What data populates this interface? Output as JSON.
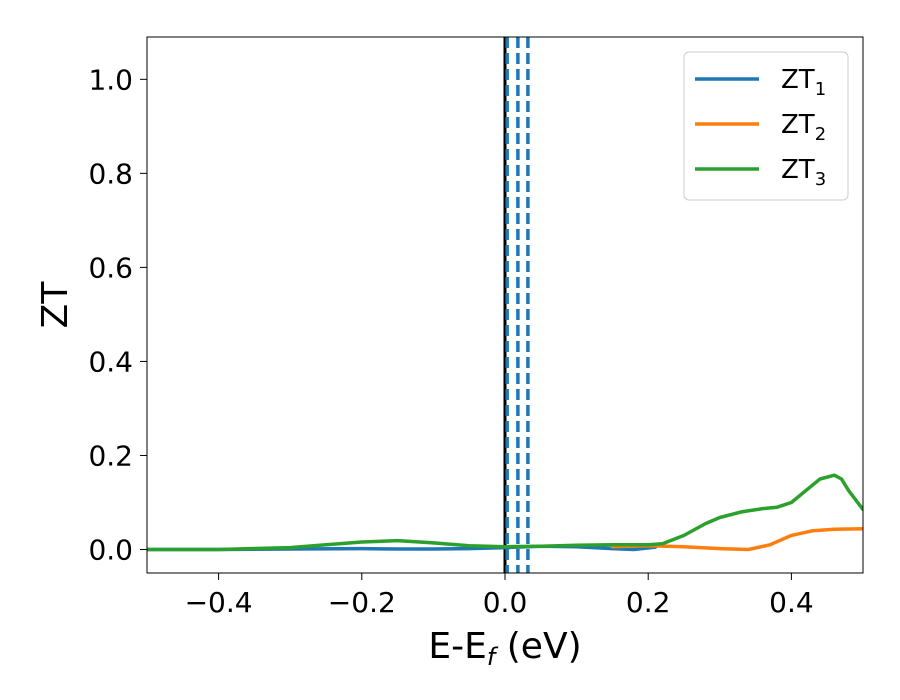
{
  "chart_data": {
    "type": "line",
    "xlabel": {
      "main": "E-E",
      "sub": "f",
      "unit": " (eV)"
    },
    "ylabel": "ZT",
    "xlim": [
      -0.5,
      0.5
    ],
    "ylim": [
      -0.05,
      1.09
    ],
    "x_ticks": [
      {
        "value": -0.4,
        "label": "−0.4"
      },
      {
        "value": -0.2,
        "label": "−0.2"
      },
      {
        "value": 0.0,
        "label": "0.0"
      },
      {
        "value": 0.2,
        "label": "0.2"
      },
      {
        "value": 0.4,
        "label": "0.4"
      }
    ],
    "y_ticks": [
      {
        "value": 0.0,
        "label": "0.0"
      },
      {
        "value": 0.2,
        "label": "0.2"
      },
      {
        "value": 0.4,
        "label": "0.4"
      },
      {
        "value": 0.6,
        "label": "0.6"
      },
      {
        "value": 0.8,
        "label": "0.8"
      },
      {
        "value": 1.0,
        "label": "1.0"
      }
    ],
    "grid": false,
    "legend_position": "top-right",
    "vlines": [
      {
        "x": 0.0,
        "color": "#000000",
        "style": "solid"
      },
      {
        "x": 0.003,
        "color": "#1f77b4",
        "style": "dashed"
      },
      {
        "x": 0.018,
        "color": "#1f77b4",
        "style": "dashed"
      },
      {
        "x": 0.032,
        "color": "#1f77b4",
        "style": "dashed"
      }
    ],
    "series": [
      {
        "name": "ZT",
        "name_sub": "1",
        "color": "#1f77b4",
        "points": [
          [
            -0.5,
            0.0
          ],
          [
            -0.4,
            0.0
          ],
          [
            -0.3,
            0.001
          ],
          [
            -0.2,
            0.002
          ],
          [
            -0.15,
            0.001
          ],
          [
            -0.1,
            0.001
          ],
          [
            -0.05,
            0.002
          ],
          [
            0.0,
            0.004
          ],
          [
            0.05,
            0.007
          ],
          [
            0.1,
            0.006
          ],
          [
            0.15,
            0.002
          ],
          [
            0.18,
            0.0
          ],
          [
            0.21,
            0.005
          ]
        ]
      },
      {
        "name": "ZT",
        "name_sub": "2",
        "color": "#ff7f0e",
        "points": [
          [
            0.15,
            0.006
          ],
          [
            0.2,
            0.008
          ],
          [
            0.25,
            0.006
          ],
          [
            0.3,
            0.002
          ],
          [
            0.34,
            0.0
          ],
          [
            0.37,
            0.01
          ],
          [
            0.4,
            0.03
          ],
          [
            0.43,
            0.04
          ],
          [
            0.46,
            0.043
          ],
          [
            0.5,
            0.044
          ]
        ]
      },
      {
        "name": "ZT",
        "name_sub": "3",
        "color": "#2ca02c",
        "points": [
          [
            -0.5,
            0.0
          ],
          [
            -0.4,
            0.0
          ],
          [
            -0.3,
            0.004
          ],
          [
            -0.25,
            0.01
          ],
          [
            -0.2,
            0.016
          ],
          [
            -0.15,
            0.019
          ],
          [
            -0.1,
            0.014
          ],
          [
            -0.05,
            0.008
          ],
          [
            0.0,
            0.006
          ],
          [
            0.05,
            0.007
          ],
          [
            0.1,
            0.009
          ],
          [
            0.15,
            0.01
          ],
          [
            0.2,
            0.01
          ],
          [
            0.22,
            0.012
          ],
          [
            0.25,
            0.03
          ],
          [
            0.28,
            0.055
          ],
          [
            0.3,
            0.068
          ],
          [
            0.33,
            0.08
          ],
          [
            0.36,
            0.087
          ],
          [
            0.38,
            0.09
          ],
          [
            0.4,
            0.1
          ],
          [
            0.42,
            0.125
          ],
          [
            0.44,
            0.15
          ],
          [
            0.46,
            0.158
          ],
          [
            0.47,
            0.15
          ],
          [
            0.48,
            0.125
          ],
          [
            0.5,
            0.085
          ]
        ]
      }
    ]
  }
}
